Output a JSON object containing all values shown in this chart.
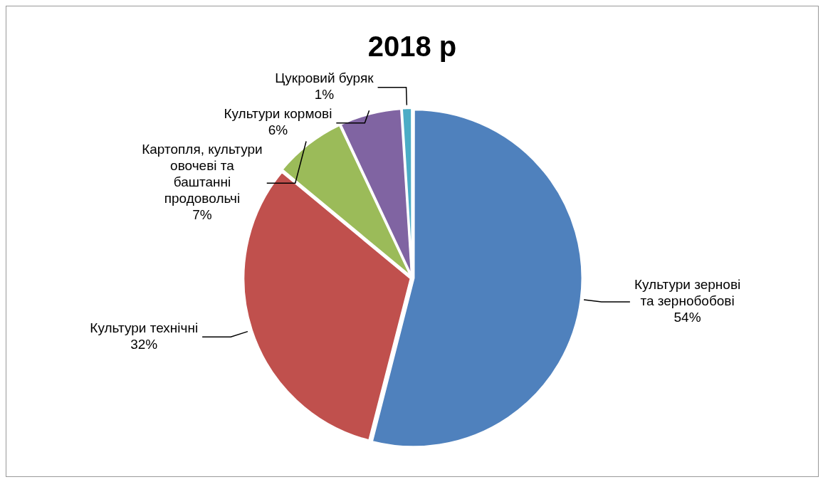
{
  "chart_data": {
    "type": "pie",
    "title": "2018 р",
    "categories": [
      "Культури зернові та зернобобові",
      "Культури технічні",
      "Картопля, культури овочеві та баштанні продовольчі",
      "Культури кормові",
      "Цукровий буряк"
    ],
    "values": [
      54,
      32,
      7,
      6,
      1
    ],
    "value_labels": [
      "54%",
      "32%",
      "7%",
      "6%",
      "1%"
    ],
    "colors": [
      "#4f81bd",
      "#c0504d",
      "#9bbb59",
      "#8064a2",
      "#4bacc6"
    ],
    "legend": false
  }
}
